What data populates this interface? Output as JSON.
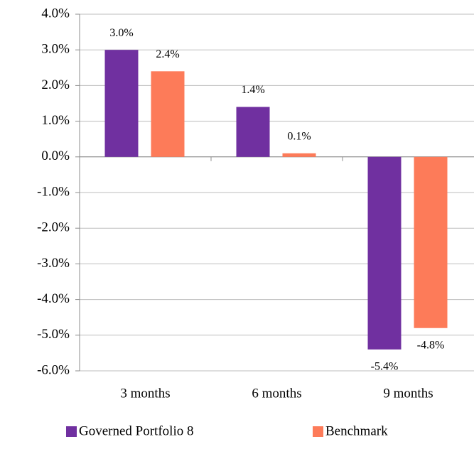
{
  "chart_data": {
    "type": "bar",
    "categories": [
      "3 months",
      "6 months",
      "9 months"
    ],
    "series": [
      {
        "name": "Governed Portfolio 8",
        "color": "#7030a0",
        "values": [
          3.0,
          1.4,
          -5.4
        ],
        "value_labels": [
          "3.0%",
          "1.4%",
          "-5.4%"
        ]
      },
      {
        "name": "Benchmark",
        "color": "#fd7b59",
        "values": [
          2.4,
          0.1,
          -4.8
        ],
        "value_labels": [
          "2.4%",
          "0.1%",
          "-4.8%"
        ]
      }
    ],
    "ylim": [
      -6,
      4
    ],
    "yticks": [
      {
        "value": 4,
        "label": "4.0%"
      },
      {
        "value": 3,
        "label": "3.0%"
      },
      {
        "value": 2,
        "label": "2.0%"
      },
      {
        "value": 1,
        "label": "1.0%"
      },
      {
        "value": 0,
        "label": "0.0%"
      },
      {
        "value": -1,
        "label": "-1.0%"
      },
      {
        "value": -2,
        "label": "-2.0%"
      },
      {
        "value": -3,
        "label": "-3.0%"
      },
      {
        "value": -4,
        "label": "-4.0%"
      },
      {
        "value": -5,
        "label": "-5.0%"
      },
      {
        "value": -6,
        "label": "-6.0%"
      }
    ],
    "grid": true,
    "legend": "bottom"
  }
}
